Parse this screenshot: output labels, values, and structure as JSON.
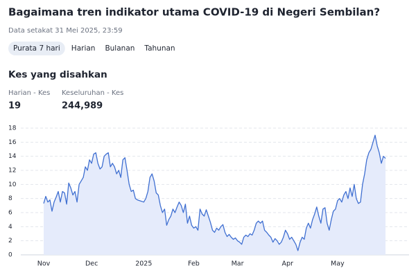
{
  "header": {
    "title": "Bagaimana tren indikator utama COVID-19 di Negeri Sembilan?",
    "subtitle": "Data setakat 31 Mei 2025, 23:59"
  },
  "tabs": {
    "items": [
      "Purata 7 hari",
      "Harian",
      "Bulanan",
      "Tahunan"
    ],
    "selected": 0
  },
  "section": {
    "title": "Kes yang disahkan",
    "stats": [
      {
        "label": "Harian - Kes",
        "value": "19"
      },
      {
        "label": "Keseluruhan - Kes",
        "value": "244,989"
      }
    ]
  },
  "chart_data": {
    "type": "line",
    "categories": [
      "Nov",
      null,
      null,
      null,
      null,
      null,
      null,
      null,
      null,
      null,
      null,
      null,
      null,
      null,
      null,
      null,
      null,
      null,
      null,
      null,
      null,
      null,
      null,
      "Dec",
      null,
      null,
      null,
      null,
      null,
      null,
      null,
      null,
      null,
      null,
      null,
      null,
      null,
      null,
      null,
      null,
      null,
      null,
      null,
      null,
      null,
      null,
      null,
      null,
      "2025",
      null,
      null,
      null,
      null,
      null,
      null,
      null,
      null,
      null,
      null,
      null,
      null,
      null,
      null,
      null,
      null,
      null,
      null,
      null,
      null,
      null,
      null,
      null,
      "Feb",
      null,
      null,
      null,
      null,
      null,
      null,
      null,
      null,
      null,
      null,
      null,
      null,
      null,
      null,
      null,
      null,
      null,
      null,
      null,
      null,
      "Mar",
      null,
      null,
      null,
      null,
      null,
      null,
      null,
      null,
      null,
      null,
      null,
      null,
      null,
      null,
      null,
      null,
      null,
      null,
      null,
      null,
      null,
      null,
      null,
      "Apr",
      null,
      null,
      null,
      null,
      null,
      null,
      null,
      null,
      null,
      null,
      null,
      null,
      null,
      null,
      null,
      null,
      null,
      null,
      null,
      null,
      null,
      null,
      null,
      "May",
      null,
      null,
      null,
      null,
      null,
      null,
      null,
      null,
      null,
      null,
      null,
      null,
      null,
      null,
      null,
      null,
      null,
      null,
      null,
      null,
      null,
      null,
      null
    ],
    "series": [
      {
        "color": "#3f6fd1",
        "fill": "#e5ebfb",
        "values": [
          7.3,
          8.3,
          7.5,
          7.8,
          6.2,
          7.5,
          8.2,
          9,
          7.5,
          9,
          8.8,
          7.2,
          10.2,
          9.5,
          8.5,
          9,
          7.5,
          10,
          10.5,
          11,
          12.5,
          12,
          13.5,
          13,
          14.3,
          14.5,
          13,
          12.2,
          12.5,
          14,
          14.3,
          14.5,
          12.5,
          13,
          12.5,
          11.5,
          12,
          11,
          13.5,
          13.8,
          12,
          10,
          9,
          9.2,
          8,
          7.8,
          7.7,
          7.6,
          7.5,
          8,
          9,
          11,
          11.5,
          10.5,
          8.8,
          8.5,
          7,
          6,
          6.5,
          4.2,
          5,
          5.5,
          6.5,
          6,
          6.8,
          7.5,
          7,
          6,
          7.2,
          4.5,
          5.5,
          4.2,
          3.8,
          4,
          3.5,
          6.5,
          5.8,
          5.5,
          6.4,
          5.5,
          4.6,
          3.5,
          3.2,
          3.8,
          3.5,
          4,
          4.3,
          3.2,
          2.6,
          2.9,
          2.5,
          2.2,
          2.4,
          2,
          1.8,
          1.5,
          2.5,
          2.8,
          2.6,
          3,
          2.8,
          3.5,
          4.5,
          4.8,
          4.5,
          4.8,
          3.5,
          3.2,
          2.8,
          2.5,
          1.8,
          2.3,
          2,
          1.5,
          1.8,
          2.5,
          3.5,
          3,
          2.2,
          2.5,
          2,
          1.5,
          0.6,
          1.8,
          2.5,
          2.2,
          3.8,
          4.5,
          3.8,
          5,
          5.8,
          6.8,
          5.5,
          4.5,
          6.5,
          6.7,
          4.5,
          3.5,
          5,
          6.2,
          6.5,
          7.7,
          8,
          7.5,
          8.5,
          9,
          8,
          9.5,
          8.3,
          10,
          8,
          7.3,
          7.5,
          10,
          11.5,
          13.5,
          14.5,
          15,
          16,
          17,
          15.5,
          14.5,
          13,
          14,
          13.7
        ]
      }
    ],
    "ylim": [
      0,
      18
    ],
    "yticks": [
      0,
      2,
      4,
      6,
      8,
      10,
      12,
      14,
      16,
      18
    ],
    "grid": true
  }
}
